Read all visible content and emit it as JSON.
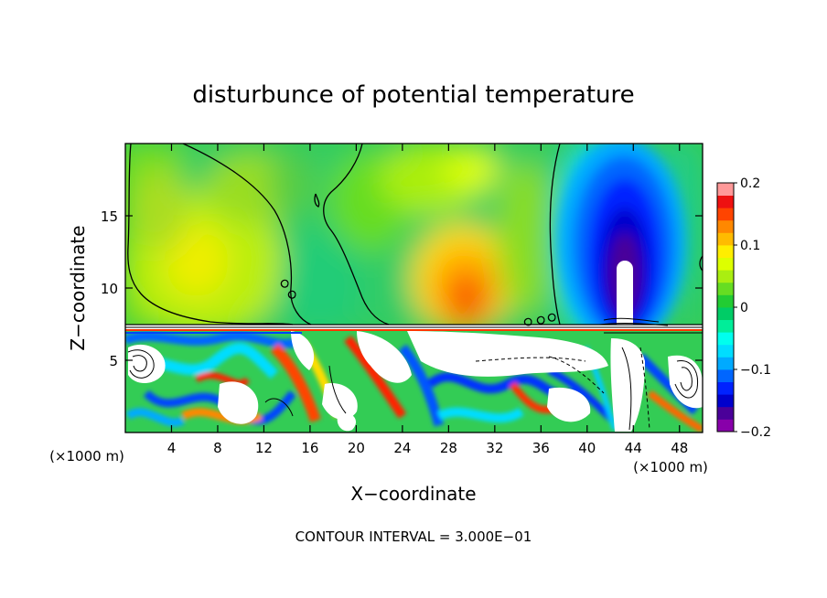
{
  "chart_data": {
    "type": "heatmap",
    "title": "disturbunce of potential temperature",
    "xlabel": "X−coordinate",
    "ylabel": "Z−coordinate",
    "x_units_left": "(×1000 m)",
    "x_units_right": "(×1000 m)",
    "xlim": [
      0,
      50
    ],
    "ylim": [
      0,
      20
    ],
    "x_ticks": [
      4,
      8,
      12,
      16,
      20,
      24,
      28,
      32,
      36,
      40,
      44,
      48
    ],
    "y_ticks": [
      5,
      10,
      15
    ],
    "colorbar": {
      "range": [
        -0.2,
        0.2
      ],
      "tick_values": [
        0.2,
        0.1,
        0,
        -0.1,
        -0.2
      ],
      "tick_labels": [
        "0.2",
        "0.1",
        "0",
        "−0.1",
        "−0.2"
      ],
      "levels": 20,
      "colors_bottom_to_top": [
        "#8800aa",
        "#4a0099",
        "#0000cc",
        "#0022ff",
        "#0066ff",
        "#00aaff",
        "#00ddff",
        "#00ffee",
        "#00ee99",
        "#00cc66",
        "#22cc33",
        "#66dd22",
        "#aaee11",
        "#ddff00",
        "#ffee00",
        "#ffbb00",
        "#ff8800",
        "#ff4400",
        "#ee1111",
        "#ff9999"
      ]
    },
    "annotation": "CONTOUR INTERVAL = 3.000E−01"
  }
}
